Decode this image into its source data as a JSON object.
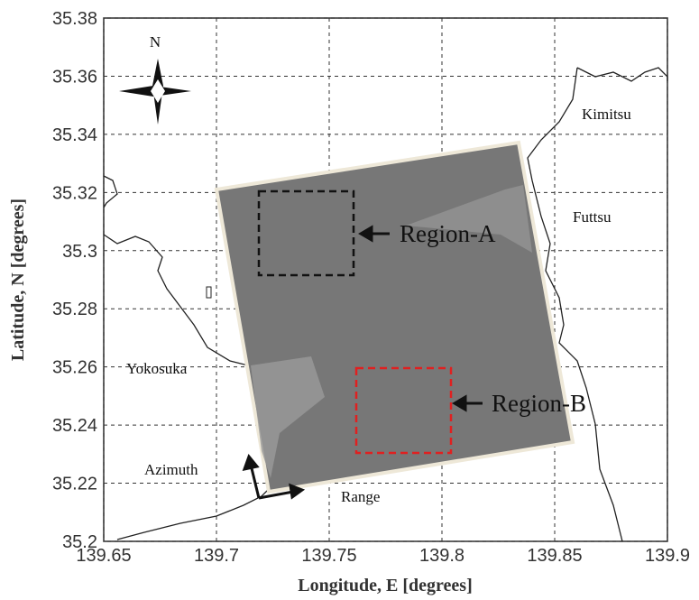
{
  "map": {
    "xlabel": "Longitude, E [degrees]",
    "ylabel": "Latitude, N [degrees]",
    "xlim": [
      139.65,
      139.9
    ],
    "ylim": [
      35.2,
      35.38
    ],
    "xticks": [
      139.65,
      139.7,
      139.75,
      139.8,
      139.85,
      139.9
    ],
    "yticks": [
      35.2,
      35.22,
      35.24,
      35.26,
      35.28,
      35.3,
      35.32,
      35.34,
      35.36,
      35.38
    ],
    "grid": true,
    "compass": "N",
    "places": [
      "Kimitsu",
      "Futtsu",
      "Yokosuka"
    ],
    "regions": [
      "Region-A",
      "Region-B"
    ],
    "directions": [
      "Azimuth",
      "Range"
    ]
  }
}
